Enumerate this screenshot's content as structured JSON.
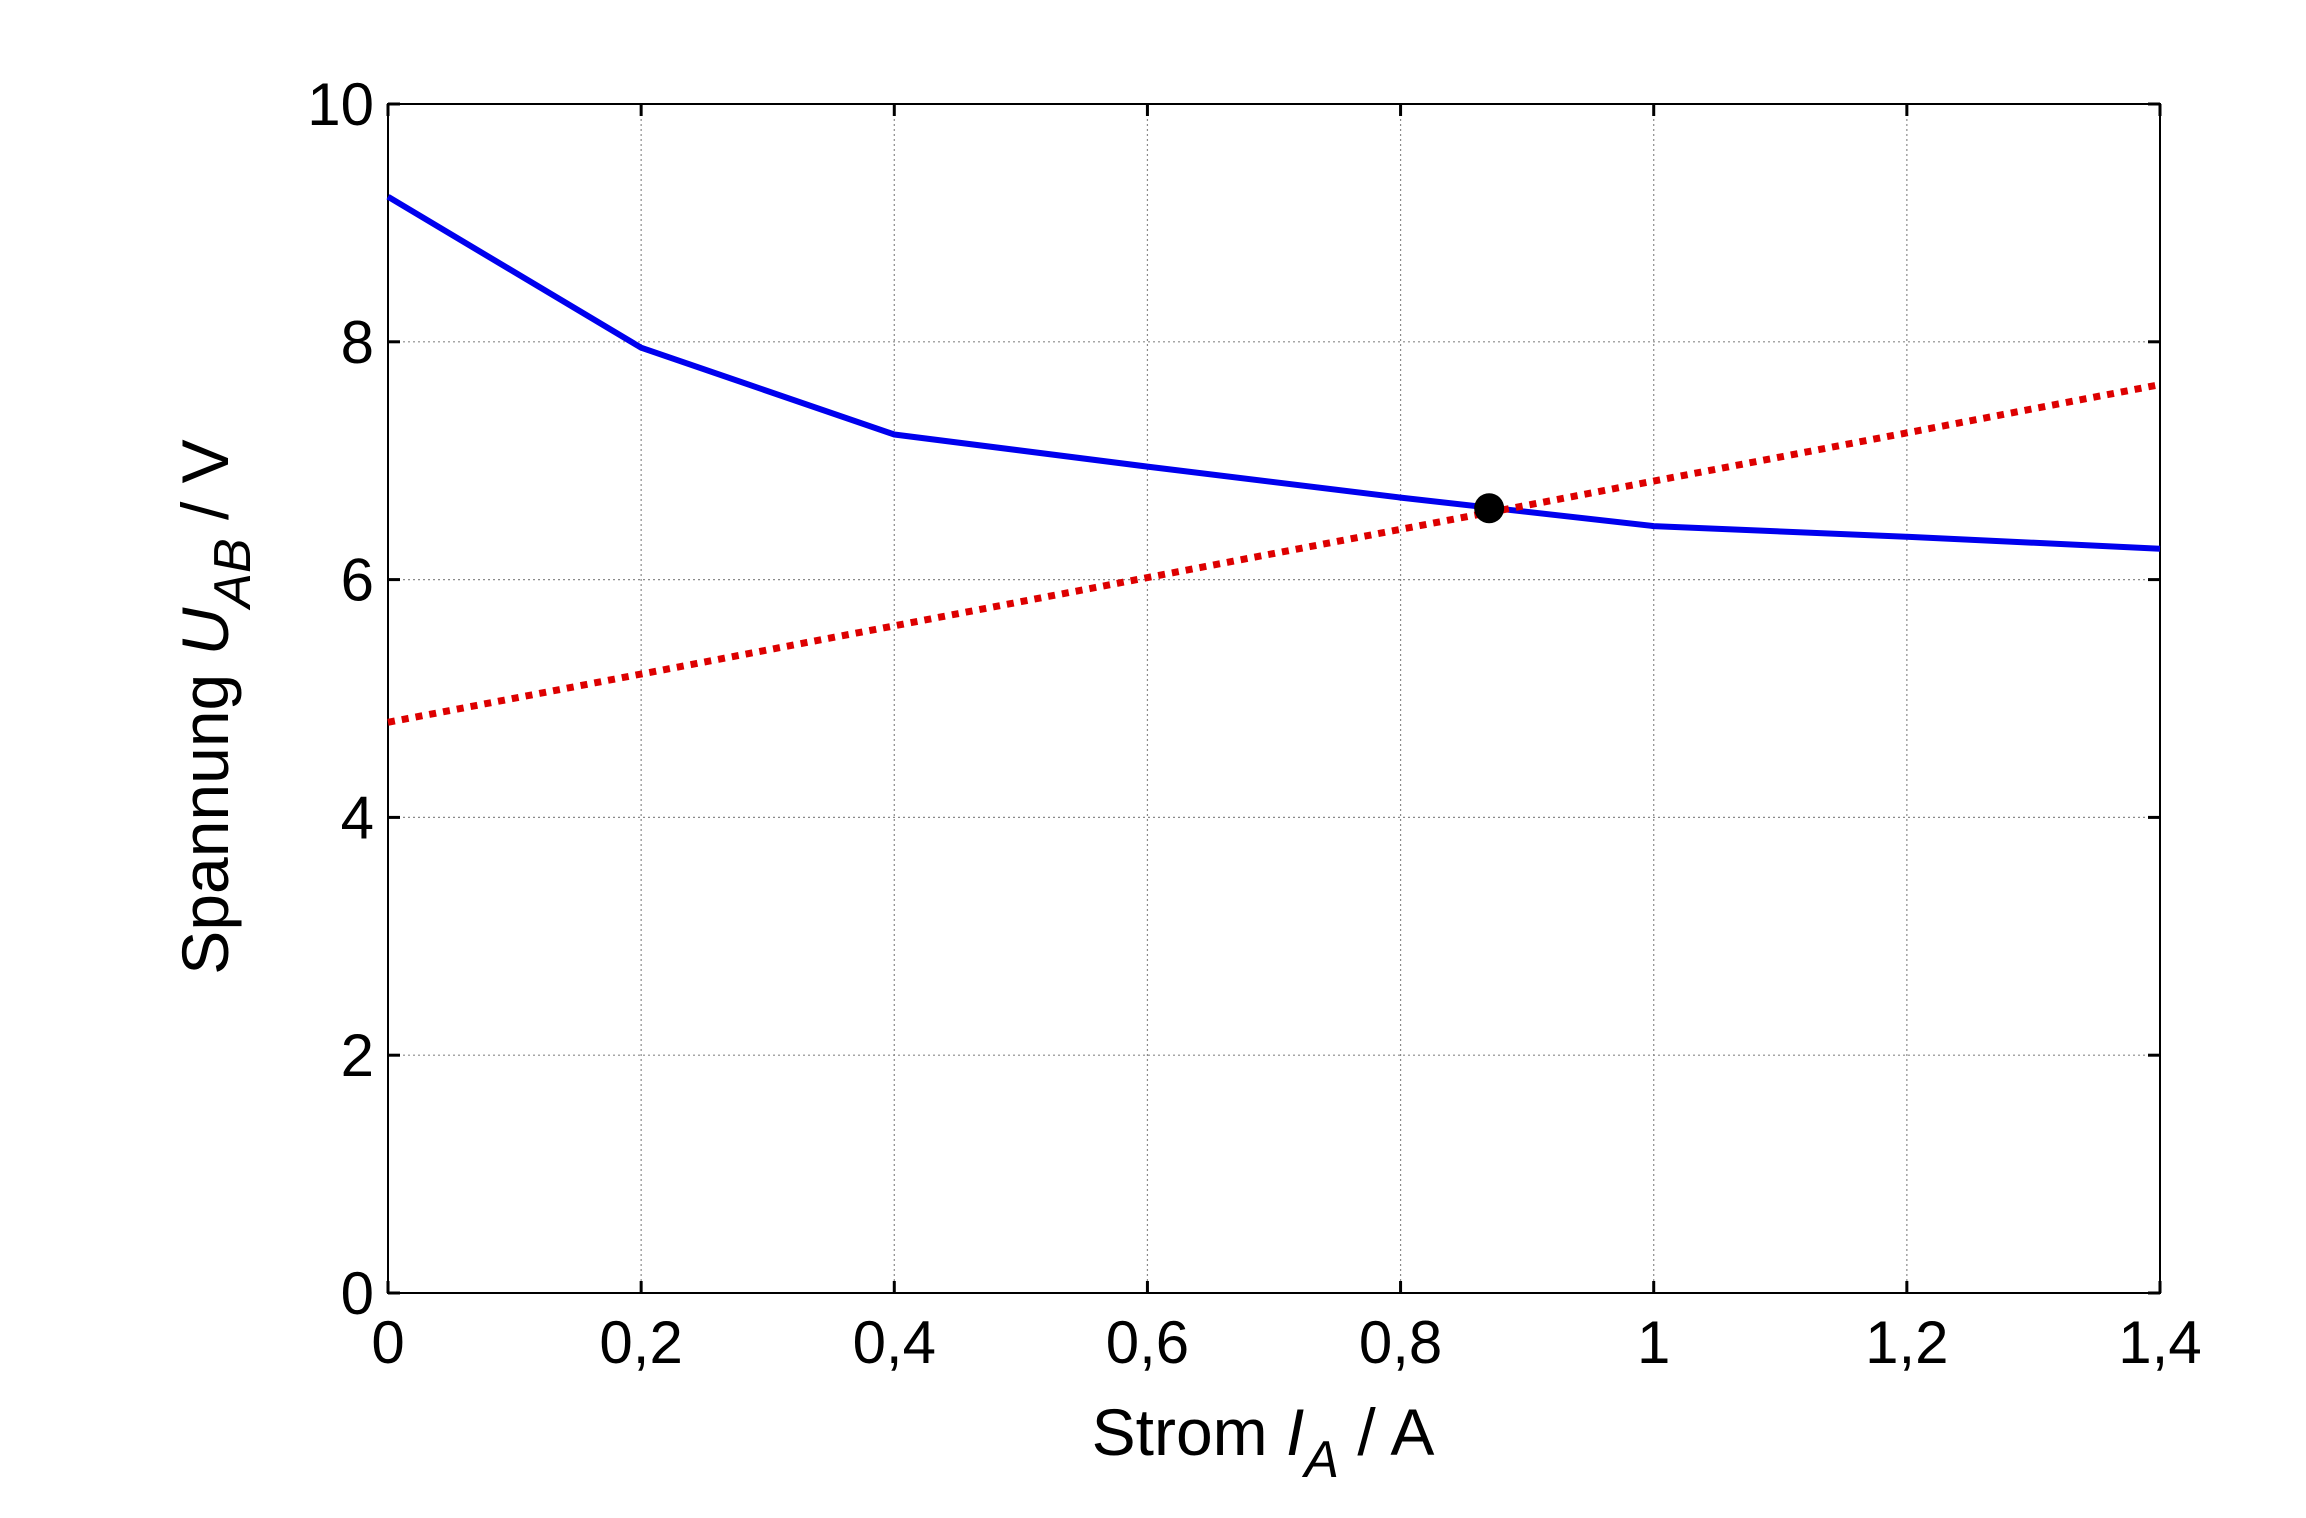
{
  "chart_data": {
    "type": "line",
    "xlabel": {
      "prefix": "Strom ",
      "symbol": "I",
      "subscript": "A",
      "suffix": " / A"
    },
    "ylabel": {
      "prefix": "Spannung  ",
      "symbol": "U",
      "subscript": "AB",
      "suffix": " / V"
    },
    "xlim": [
      0,
      1.4
    ],
    "ylim": [
      0,
      10
    ],
    "x_ticks": [
      {
        "value": 0,
        "label": "0"
      },
      {
        "value": 0.2,
        "label": "0,2"
      },
      {
        "value": 0.4,
        "label": "0,4"
      },
      {
        "value": 0.6,
        "label": "0,6"
      },
      {
        "value": 0.8,
        "label": "0,8"
      },
      {
        "value": 1.0,
        "label": "1"
      },
      {
        "value": 1.2,
        "label": "1,2"
      },
      {
        "value": 1.4,
        "label": "1,4"
      }
    ],
    "y_ticks": [
      {
        "value": 0,
        "label": "0"
      },
      {
        "value": 2,
        "label": "2"
      },
      {
        "value": 4,
        "label": "4"
      },
      {
        "value": 6,
        "label": "6"
      },
      {
        "value": 8,
        "label": "8"
      },
      {
        "value": 10,
        "label": "10"
      }
    ],
    "grid": true,
    "series": [
      {
        "color": "#0000ee",
        "style": "solid",
        "points": [
          [
            0,
            9.22
          ],
          [
            0.2,
            7.95
          ],
          [
            0.4,
            7.22
          ],
          [
            0.6,
            6.95
          ],
          [
            0.8,
            6.69
          ],
          [
            1.0,
            6.45
          ],
          [
            1.2,
            6.36
          ],
          [
            1.4,
            6.26
          ]
        ]
      },
      {
        "color": "#dd0000",
        "style": "dotted",
        "points": [
          [
            0,
            4.8
          ],
          [
            1.4,
            7.64
          ]
        ]
      }
    ],
    "markers": [
      {
        "x": 0.87,
        "y": 6.6,
        "color": "#000000"
      }
    ]
  }
}
